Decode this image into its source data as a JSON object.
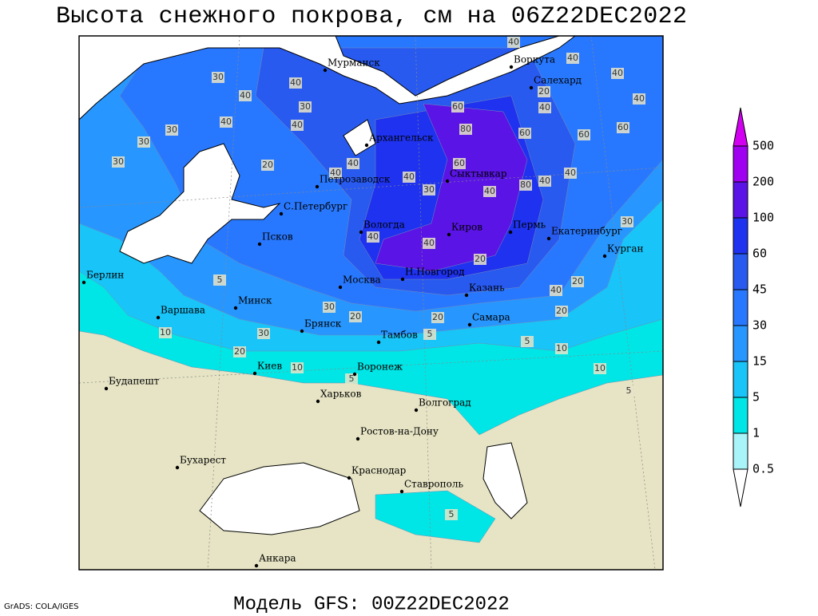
{
  "title": "Высота снежного покрова, см на 06Z22DEC2022",
  "footer": "Модель GFS: 00Z22DEC2022",
  "credit": "GrADS: COLA/IGES",
  "legend": {
    "levels": [
      0.5,
      1,
      5,
      15,
      30,
      45,
      60,
      100,
      200,
      500
    ],
    "colors": [
      "#ffffff",
      "#a8f4f8",
      "#00e6e6",
      "#18c4f8",
      "#2896ff",
      "#2878ff",
      "#285af0",
      "#1e32f0",
      "#5a14e6",
      "#a000f0",
      "#d200f0"
    ]
  },
  "cities": [
    "Мурманск",
    "Воркута",
    "Салехард",
    "Архангельск",
    "Петрозаводск",
    "Сыктывкар",
    "С.Петербург",
    "Вологда",
    "Пермь",
    "Киров",
    "Екатеринбург",
    "Псков",
    "Курган",
    "Берлин",
    "Н.Новгород",
    "Москва",
    "Казань",
    "Минск",
    "Варшава",
    "Самара",
    "Брянск",
    "Тамбов",
    "Киев",
    "Воронеж",
    "Будапешт",
    "Харьков",
    "Волгоград",
    "Ростов-на-Дону",
    "Бухарест",
    "Краснодар",
    "Ставрополь",
    "Анкара"
  ],
  "contour_labels": [
    40,
    30,
    40,
    40,
    30,
    30,
    30,
    40,
    30,
    20,
    40,
    40,
    40,
    30,
    80,
    60,
    60,
    40,
    20,
    40,
    40,
    60,
    60,
    40,
    40,
    80,
    40,
    30,
    40,
    40,
    20,
    40,
    20,
    20,
    5,
    30,
    30,
    10,
    20,
    10,
    5,
    20,
    20,
    5,
    5,
    10,
    10,
    5,
    5,
    40,
    40,
    60
  ]
}
